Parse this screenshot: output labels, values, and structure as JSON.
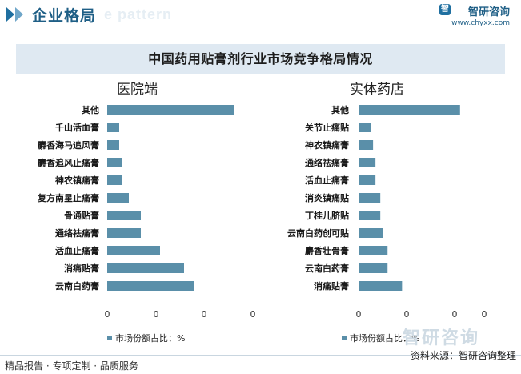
{
  "header": {
    "title": "企业格局",
    "watermark_text": "e pattern",
    "brand_name": "智研咨询",
    "brand_url": "www.chyxx.com"
  },
  "chart_title": "中国药用贴膏剂行业市场竞争格局情况",
  "legend_label": "市场份额占比：%",
  "footer": {
    "left": "精品报告 · 专项定制 · 品质服务",
    "source": "资料来源：智研咨询整理",
    "watermark": "智研咨询"
  },
  "colors": {
    "bar": "#5a8fa9",
    "header": "#1f5f86",
    "title_bg": "#dfe9f2"
  },
  "chart_data": [
    {
      "type": "bar",
      "orientation": "horizontal",
      "title": "医院端",
      "categories": [
        "其他",
        "千山活血膏",
        "麝香海马追风膏",
        "麝香追风止痛膏",
        "神农镇痛膏",
        "复方南星止痛膏",
        "骨通贴膏",
        "通络祛痛膏",
        "活血止痛膏",
        "消痛贴膏",
        "云南白药膏"
      ],
      "values": [
        26.5,
        2.5,
        2.5,
        3,
        3,
        4.5,
        7,
        7,
        11,
        16,
        18
      ],
      "xlim": [
        0,
        30
      ],
      "x_tick_labels": [
        "0",
        "0",
        "0",
        "0"
      ]
    },
    {
      "type": "bar",
      "orientation": "horizontal",
      "title": "实体药店",
      "categories": [
        "其他",
        "关节止痛贴",
        "神农镇痛膏",
        "通络祛痛膏",
        "活血止痛膏",
        "消炎镇痛贴",
        "丁桂儿脐贴",
        "云南白药创可贴",
        "麝香壮骨膏",
        "云南白药膏",
        "消痛贴膏"
      ],
      "values": [
        21,
        2.5,
        3,
        3.5,
        3.5,
        4.5,
        4.5,
        5,
        6,
        6,
        9
      ],
      "xlim": [
        0,
        26
      ],
      "x_tick_labels": [
        "0",
        "0",
        "0",
        "0"
      ]
    }
  ]
}
